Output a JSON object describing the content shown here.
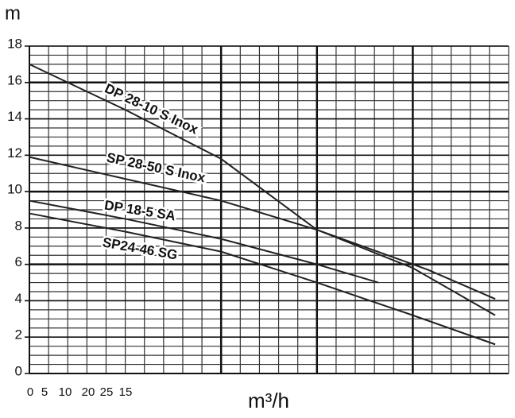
{
  "chart_data": {
    "type": "line",
    "y_label": "m",
    "x_label": "m³/h",
    "x_tick_labels": [
      "0",
      "5",
      "10",
      "20",
      "25",
      "15"
    ],
    "xlim": [
      0,
      25
    ],
    "ylim": [
      0,
      18
    ],
    "yticks": [
      0,
      2,
      4,
      6,
      8,
      10,
      12,
      14,
      16,
      18
    ],
    "minor_ystep": 0.5,
    "major_ygrid": [
      6,
      10,
      16
    ],
    "xgrid": [
      0,
      1,
      2,
      3,
      4,
      5,
      6,
      7,
      8,
      9,
      10,
      11,
      12,
      13,
      14,
      15,
      16,
      17,
      18,
      19,
      20,
      21,
      22,
      23,
      24,
      25
    ],
    "major_xgrid": [
      10,
      15,
      20
    ],
    "color": "#222",
    "series": [
      {
        "name": "DP 28-10 S Inox",
        "x": [
          0,
          5,
          10,
          15,
          20,
          24.3
        ],
        "values": [
          17,
          14.5,
          11.8,
          7.9,
          5.8,
          3.2
        ]
      },
      {
        "name": "SP 28-50 S Inox",
        "x": [
          0,
          5,
          10,
          15,
          20.8,
          24.3
        ],
        "values": [
          11.9,
          10.7,
          9.5,
          7.9,
          5.7,
          4.1
        ]
      },
      {
        "name": "DP 18-5 SA",
        "x": [
          0,
          5,
          10,
          15,
          18.2
        ],
        "values": [
          9.5,
          8.5,
          7.4,
          6.0,
          5.0
        ]
      },
      {
        "name": "SP24-46 SG",
        "x": [
          0,
          5,
          10,
          15,
          20,
          24.3
        ],
        "values": [
          8.8,
          7.8,
          6.7,
          5.0,
          3.2,
          1.6
        ]
      }
    ]
  }
}
